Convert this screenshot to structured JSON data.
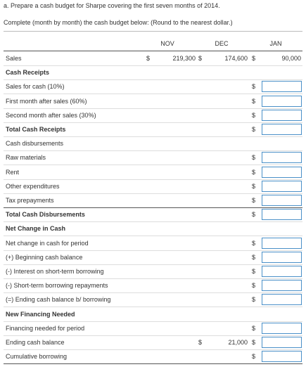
{
  "header": {
    "instruction": "a. Prepare a cash budget for Sharpe covering the first seven months of 2014.",
    "subinstruction": "Complete (month by month) the cash budget below: (Round to the nearest dollar.)"
  },
  "table": {
    "currency": "$",
    "columns": [
      "NOV",
      "DEC",
      "JAN"
    ],
    "rows": [
      {
        "label": "Sales",
        "cells": [
          "219,300",
          "174,600",
          "90,000"
        ]
      },
      {
        "label": "Cash Receipts",
        "bold": true
      },
      {
        "label": "Sales for cash (10%)",
        "input": true
      },
      {
        "label": "First month after sales (60%)",
        "input": true
      },
      {
        "label": "Second month after sales (30%)",
        "input": true
      },
      {
        "label": "Total Cash Receipts",
        "bold": true,
        "input": true
      },
      {
        "label": "Cash disbursements"
      },
      {
        "label": "Raw materials",
        "input": true
      },
      {
        "label": "Rent",
        "input": true
      },
      {
        "label": "Other expenditures",
        "input": true
      },
      {
        "label": "Tax prepayments",
        "input": true
      },
      {
        "label": "Total Cash Disbursements",
        "bold": true,
        "input": true
      },
      {
        "label": "Net Change in Cash",
        "bold": true
      },
      {
        "label": "Net change in cash for period",
        "input": true
      },
      {
        "label": "(+) Beginning cash balance",
        "input": true
      },
      {
        "label": "(-) Interest on short-term borrowing",
        "input": true
      },
      {
        "label": "(-) Short-term borrowing repayments",
        "input": true
      },
      {
        "label": "(=) Ending cash balance b/ borrowing",
        "input": true
      },
      {
        "label": "New Financing Needed",
        "bold": true
      },
      {
        "label": "Financing needed for period",
        "input": true
      },
      {
        "label": "Ending cash balance",
        "cells": [
          null,
          "21,000"
        ],
        "input": true
      },
      {
        "label": "Cumulative borrowing",
        "input": true
      }
    ]
  }
}
